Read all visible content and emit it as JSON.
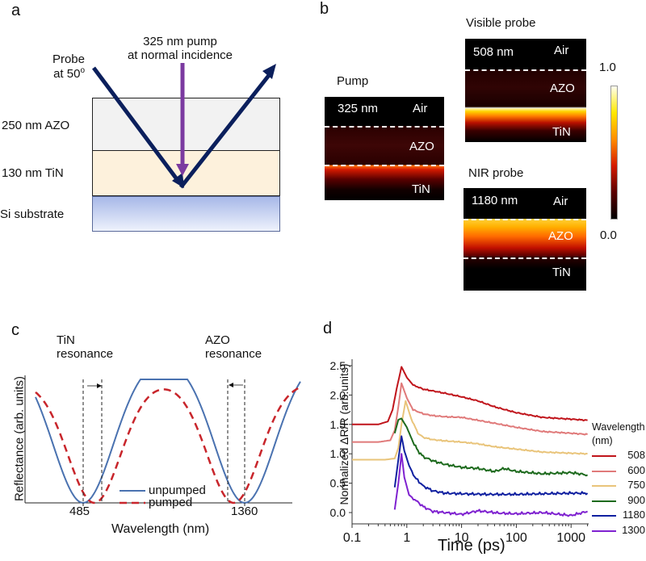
{
  "panel_a": {
    "letter": "a",
    "probe_label_line1": "Probe",
    "probe_label_line2": "at 50",
    "probe_superscript": "o",
    "pump_label_line1": "325 nm pump",
    "pump_label_line2": "at normal incidence",
    "layers": [
      {
        "label": "250 nm AZO",
        "color": "#f2f2f2"
      },
      {
        "label": "130 nm TiN",
        "color": "#fdf1dc"
      },
      {
        "label": "Si substrate",
        "color_top": "#a7b8e8",
        "color_bottom": "#e9eefb"
      }
    ],
    "probe_color": "#0b1f5c",
    "pump_color": "#7b3aa0"
  },
  "panel_b": {
    "letter": "b",
    "colorbar": {
      "max_label": "1.0",
      "min_label": "0.0",
      "colormap": [
        "#000000",
        "#5a0000",
        "#d41a00",
        "#ff8c00",
        "#ffe800",
        "#fffff0"
      ]
    },
    "maps": [
      {
        "title": "Pump",
        "wavelength": "325 nm",
        "layers": [
          "Air",
          "AZO",
          "TiN"
        ]
      },
      {
        "title": "Visible probe",
        "wavelength": "508 nm",
        "layers": [
          "Air",
          "AZO",
          "TiN"
        ]
      },
      {
        "title": "NIR probe",
        "wavelength": "1180 nm",
        "layers": [
          "Air",
          "AZO",
          "TiN"
        ]
      }
    ]
  },
  "chart_data": [
    {
      "panel": "c",
      "type": "line",
      "title": "",
      "annotations": [
        {
          "text_line1": "TiN",
          "text_line2": "resonance",
          "shift": "red-shift (arrow right)"
        },
        {
          "text_line1": "AZO",
          "text_line2": "resonance",
          "shift": "blue-shift (arrow left)"
        }
      ],
      "xlabel": "Wavelength  (nm)",
      "ylabel": "Reflectance (arb. units)",
      "x_ticks": [
        "485",
        "1360"
      ],
      "legend": {
        "position": "bottom-center",
        "entries": [
          "unpumped",
          "pumped"
        ]
      },
      "series": [
        {
          "name": "unpumped",
          "style": "solid",
          "color": "#4a72b0",
          "minima_nm": [
            485,
            1360
          ]
        },
        {
          "name": "pumped",
          "style": "dashed",
          "color": "#c8252b",
          "minima_nm": [
            545,
            1300
          ]
        }
      ]
    },
    {
      "panel": "d",
      "type": "line",
      "title": "",
      "xlabel": "Time (ps)",
      "ylabel": "Normalized ΔR/R (arb.units)",
      "xscale": "log",
      "xlim": [
        0.1,
        2000
      ],
      "ylim": [
        -0.2,
        2.6
      ],
      "x_ticks": [
        "0.1",
        "1",
        "10",
        "100",
        "1000"
      ],
      "y_ticks": [
        "0.0",
        "0.5",
        "1.0",
        "1.5",
        "2.0",
        "2.5"
      ],
      "legend": {
        "position": "right",
        "title_line1": "Wavelength",
        "title_line2": "(nm)"
      },
      "series": [
        {
          "name": "508",
          "color": "#c0141b",
          "x": [
            0.1,
            0.3,
            0.45,
            0.55,
            0.65,
            0.8,
            1.0,
            1.3,
            2,
            3,
            5,
            10,
            20,
            40,
            100,
            300,
            1000,
            2000
          ],
          "y": [
            1.5,
            1.5,
            1.55,
            1.75,
            2.1,
            2.48,
            2.3,
            2.17,
            2.1,
            2.07,
            2.03,
            1.97,
            1.9,
            1.8,
            1.7,
            1.62,
            1.59,
            1.57
          ]
        },
        {
          "name": "600",
          "color": "#e07a7a",
          "x": [
            0.1,
            0.3,
            0.5,
            0.6,
            0.7,
            0.8,
            1.0,
            1.3,
            2,
            3,
            5,
            10,
            20,
            40,
            100,
            300,
            1000,
            2000
          ],
          "y": [
            1.2,
            1.2,
            1.23,
            1.4,
            1.8,
            2.2,
            1.95,
            1.75,
            1.68,
            1.65,
            1.63,
            1.62,
            1.57,
            1.52,
            1.45,
            1.38,
            1.35,
            1.33
          ]
        },
        {
          "name": "750",
          "color": "#e9c47a",
          "x": [
            0.1,
            0.4,
            0.6,
            0.7,
            0.8,
            0.95,
            1.2,
            1.6,
            2,
            3,
            5,
            10,
            20,
            40,
            100,
            300,
            1000,
            2000
          ],
          "y": [
            0.9,
            0.9,
            0.92,
            1.1,
            1.5,
            1.9,
            1.6,
            1.35,
            1.28,
            1.24,
            1.22,
            1.2,
            1.17,
            1.12,
            1.08,
            1.03,
            1.01,
            1.0
          ]
        },
        {
          "name": "900",
          "color": "#1d6a1d",
          "x": [
            0.6,
            0.7,
            0.8,
            1.0,
            1.3,
            1.6,
            2,
            3,
            5,
            10,
            20,
            40,
            60,
            100,
            300,
            1000,
            2000
          ],
          "y": [
            1.35,
            1.58,
            1.6,
            1.45,
            1.2,
            1.05,
            0.95,
            0.88,
            0.82,
            0.77,
            0.75,
            0.7,
            0.75,
            0.7,
            0.66,
            0.68,
            0.64
          ]
        },
        {
          "name": "1180",
          "color": "#1020a0",
          "x": [
            0.6,
            0.7,
            0.8,
            0.9,
            1.1,
            1.4,
            2,
            3,
            5,
            10,
            30,
            100,
            300,
            1000,
            2000
          ],
          "y": [
            0.43,
            0.9,
            1.3,
            1.05,
            0.8,
            0.6,
            0.45,
            0.37,
            0.33,
            0.32,
            0.31,
            0.31,
            0.32,
            0.33,
            0.33
          ]
        },
        {
          "name": "1300",
          "color": "#7f22d0",
          "x": [
            0.6,
            0.7,
            0.8,
            0.9,
            1.1,
            1.4,
            2,
            3,
            5,
            10,
            20,
            50,
            100,
            300,
            1000,
            2000
          ],
          "y": [
            0.05,
            0.5,
            1.0,
            0.6,
            0.3,
            0.22,
            0.1,
            0.02,
            0.0,
            -0.03,
            0.03,
            -0.01,
            -0.02,
            0.0,
            -0.05,
            0.02
          ]
        }
      ]
    }
  ]
}
